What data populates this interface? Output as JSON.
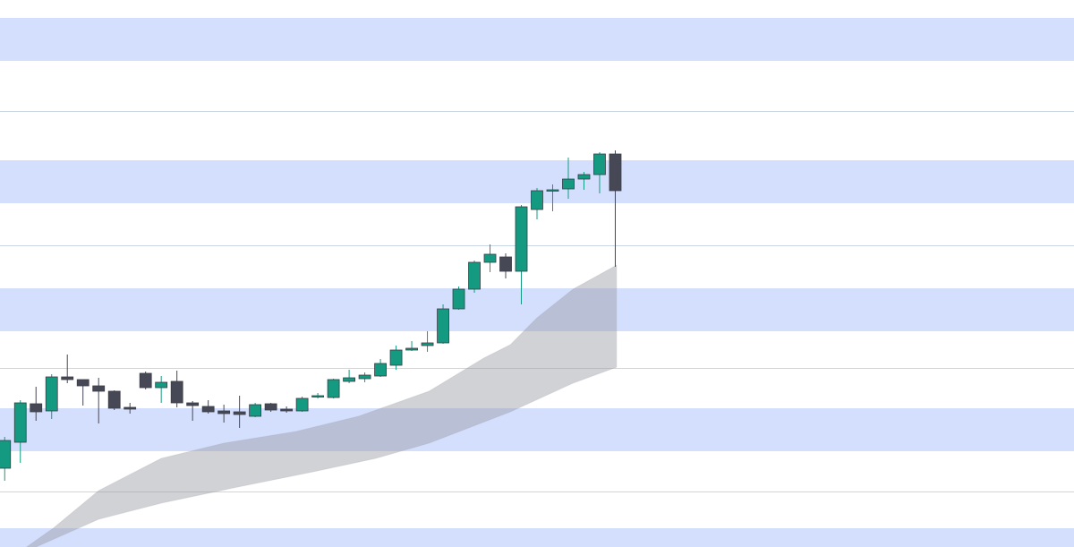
{
  "chart_data": {
    "type": "candlestick",
    "up_color": "#139a80",
    "down_color": "#464855",
    "ylim": [
      0,
      611
    ],
    "xlim": [
      -0.3,
      68.3
    ],
    "open": [
      88,
      117,
      160,
      152,
      190,
      187,
      180,
      174,
      156,
      194,
      178,
      185,
      161,
      157,
      152,
      151,
      146,
      160,
      154,
      152,
      168,
      167,
      185,
      188,
      191,
      203,
      220,
      225,
      228,
      266,
      288,
      318,
      324,
      308,
      377,
      398,
      400,
      411,
      416,
      439
    ],
    "high": [
      123,
      164,
      179,
      193,
      215,
      187,
      189,
      175,
      161,
      196,
      191,
      197,
      163,
      164,
      159,
      169,
      161,
      161,
      157,
      168,
      172,
      188,
      198,
      195,
      210,
      225,
      230,
      241,
      271,
      291,
      320,
      338,
      328,
      382,
      401,
      405,
      435,
      419,
      441,
      443
    ],
    "low": [
      74,
      94,
      141,
      143,
      183,
      158,
      138,
      153,
      149,
      176,
      161,
      156,
      141,
      149,
      139,
      133,
      145,
      151,
      150,
      151,
      166,
      166,
      183,
      184,
      190,
      198,
      219,
      218,
      227,
      265,
      284,
      307,
      300,
      271,
      366,
      375,
      389,
      399,
      395,
      313
    ],
    "close": [
      119,
      161,
      151,
      190,
      187,
      180,
      174,
      155,
      154,
      178,
      184,
      161,
      158,
      151,
      149,
      148,
      159,
      153,
      152,
      166,
      169,
      187,
      189,
      192,
      205,
      220,
      222,
      228,
      266,
      288,
      318,
      327,
      308,
      380,
      398,
      399,
      411,
      416,
      439,
      398
    ],
    "band": {
      "color": "#9a9ca3",
      "upper": {
        "x": [
          1.4,
          3.1,
          6,
          10,
          14,
          18.6,
          22.6,
          27.1,
          30.6,
          32.3,
          34,
          36.3,
          39.1
        ],
        "values": [
          0,
          21,
          63,
          99,
          116,
          129,
          146,
          174,
          211,
          226,
          256,
          288,
          315
        ]
      },
      "lower": {
        "x": [
          2,
          6,
          10,
          14.6,
          19.7,
          23.7,
          27.1,
          32.3,
          36.3,
          39.1
        ],
        "values": [
          0,
          31,
          49,
          66,
          84,
          99,
          116,
          151,
          183,
          201
        ]
      }
    }
  }
}
